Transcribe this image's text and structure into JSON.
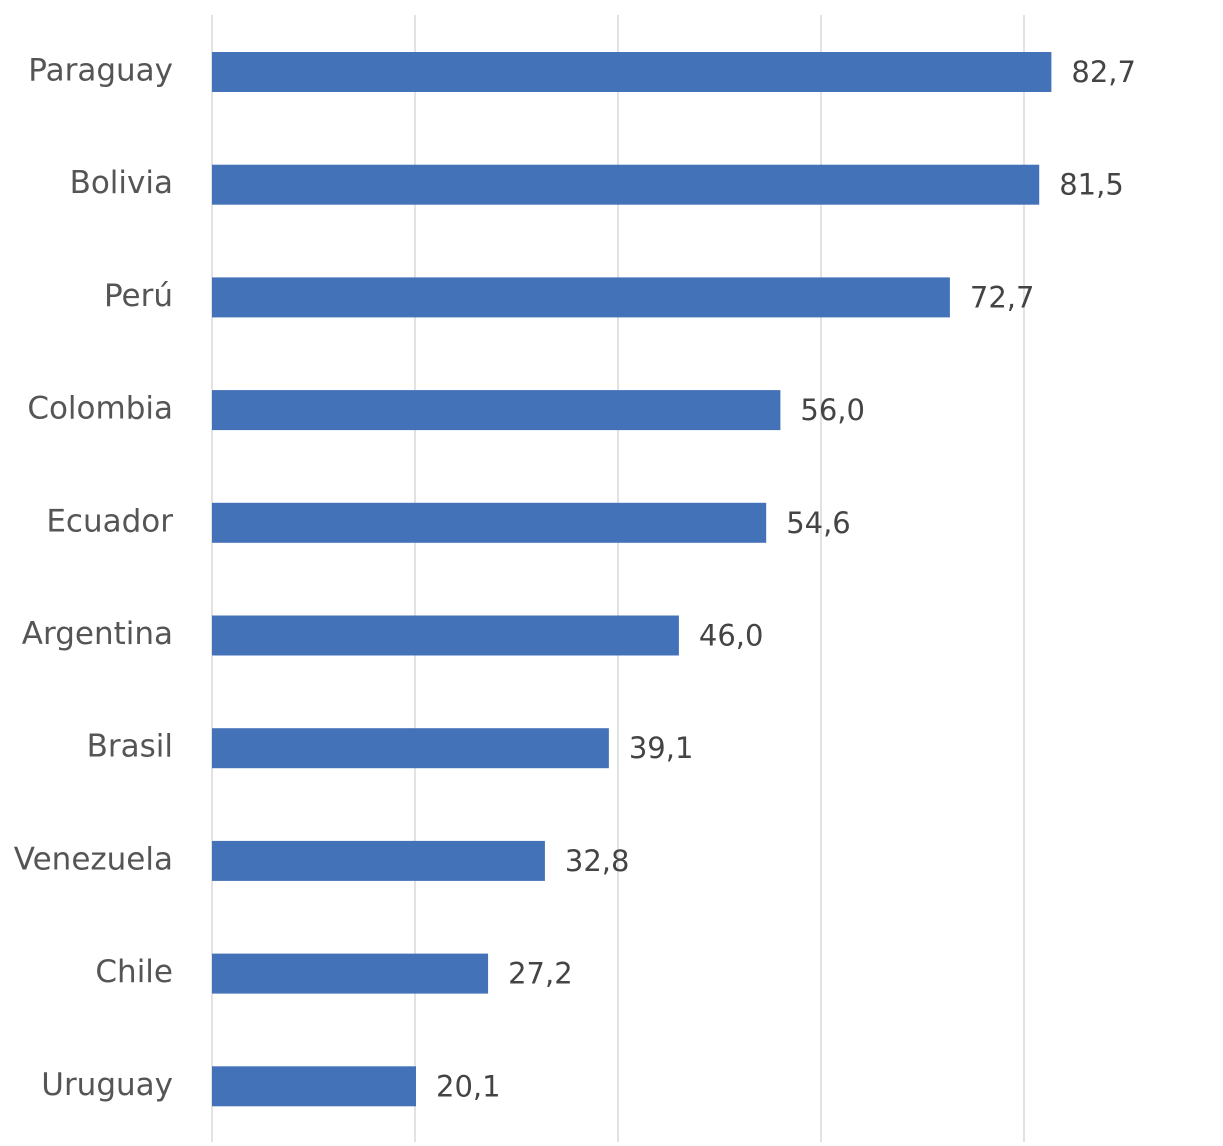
{
  "chart_data": {
    "type": "bar",
    "orientation": "horizontal",
    "categories": [
      "Paraguay",
      "Bolivia",
      "Perú",
      "Colombia",
      "Ecuador",
      "Argentina",
      "Brasil",
      "Venezuela",
      "Chile",
      "Uruguay"
    ],
    "values": [
      82.7,
      81.5,
      72.7,
      56.0,
      54.6,
      46.0,
      39.1,
      32.8,
      27.2,
      20.1
    ],
    "value_labels": [
      "82,7",
      "81,5",
      "72,7",
      "56,0",
      "54,6",
      "46,0",
      "39,1",
      "32,8",
      "27,2",
      "20,1"
    ],
    "title": "",
    "xlabel": "",
    "ylabel": "",
    "xlim": [
      0,
      100
    ],
    "grid": true,
    "grid_step": 20,
    "bar_color": "#4472b8",
    "grid_color": "#d9d9d9",
    "legend": "none"
  }
}
